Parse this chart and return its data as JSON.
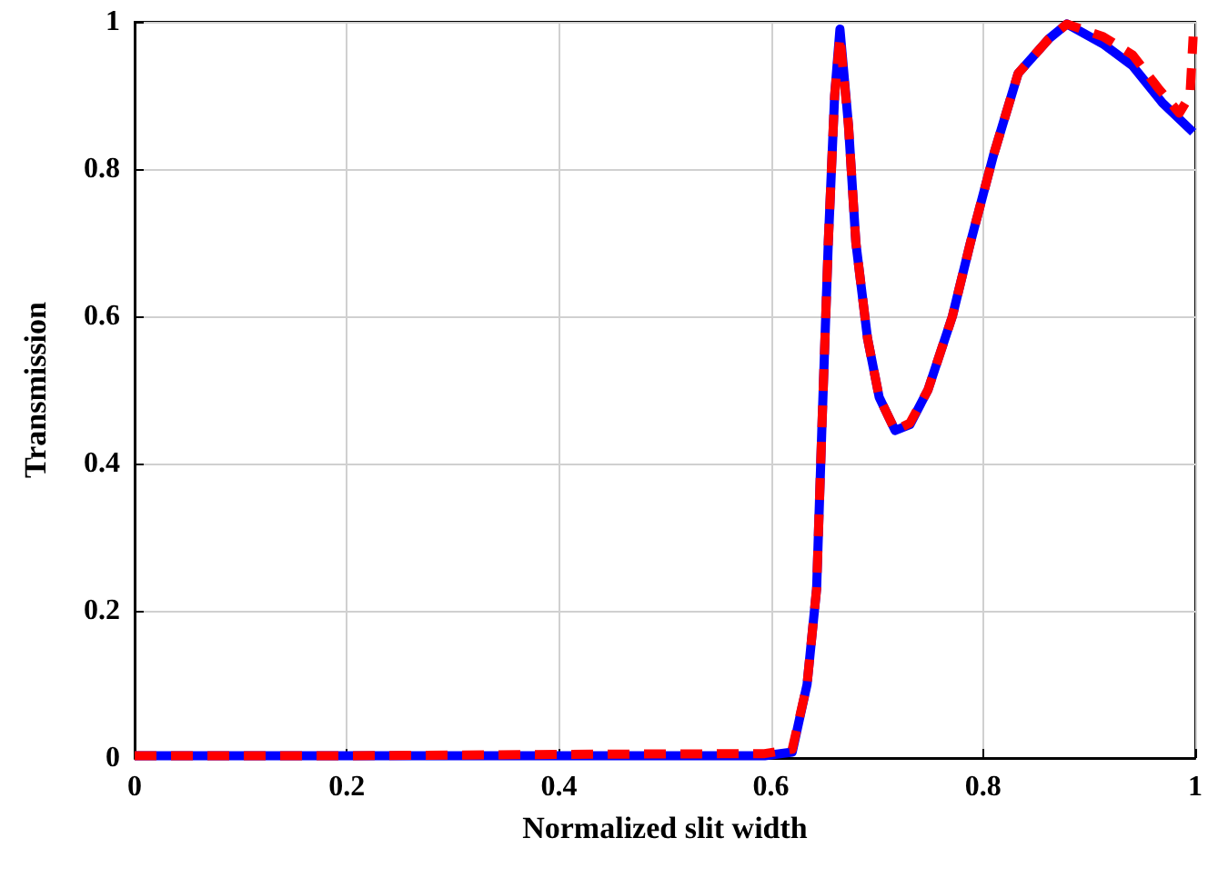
{
  "chart_data": {
    "type": "line",
    "xlabel": "Normalized slit width",
    "ylabel": "Transmission",
    "xlim": [
      0,
      1
    ],
    "ylim": [
      0,
      1
    ],
    "xticks": [
      0,
      0.2,
      0.4,
      0.6,
      0.8,
      1
    ],
    "yticks": [
      0,
      0.2,
      0.4,
      0.6,
      0.8,
      1
    ],
    "grid": true,
    "marker": "none",
    "series": [
      {
        "color": "#0000ff",
        "line_style": "solid",
        "x": [
          0,
          0.2,
          0.4,
          0.594,
          0.62,
          0.634,
          0.643,
          0.648,
          0.654,
          0.66,
          0.665,
          0.673,
          0.68,
          0.691,
          0.702,
          0.717,
          0.731,
          0.748,
          0.771,
          0.788,
          0.81,
          0.833,
          0.862,
          0.879,
          0.913,
          0.941,
          0.969,
          0.998
        ],
        "values": [
          0.003,
          0.003,
          0.003,
          0.003,
          0.008,
          0.1,
          0.23,
          0.45,
          0.7,
          0.9,
          0.99,
          0.86,
          0.7,
          0.57,
          0.49,
          0.445,
          0.453,
          0.5,
          0.6,
          0.7,
          0.82,
          0.93,
          0.977,
          0.997,
          0.97,
          0.94,
          0.89,
          0.85
        ]
      },
      {
        "color": "#ff0000",
        "line_style": "dashed",
        "x": [
          0,
          0.2,
          0.4,
          0.594,
          0.62,
          0.634,
          0.643,
          0.648,
          0.654,
          0.66,
          0.665,
          0.673,
          0.68,
          0.691,
          0.702,
          0.717,
          0.731,
          0.748,
          0.771,
          0.788,
          0.81,
          0.833,
          0.862,
          0.879,
          0.913,
          0.941,
          0.965,
          0.985,
          0.995,
          0.998
        ],
        "values": [
          0.003,
          0.003,
          0.005,
          0.006,
          0.012,
          0.1,
          0.23,
          0.45,
          0.7,
          0.9,
          0.98,
          0.86,
          0.7,
          0.57,
          0.49,
          0.445,
          0.455,
          0.5,
          0.6,
          0.7,
          0.82,
          0.93,
          0.977,
          0.997,
          0.98,
          0.955,
          0.91,
          0.876,
          0.9,
          0.98
        ]
      }
    ]
  }
}
